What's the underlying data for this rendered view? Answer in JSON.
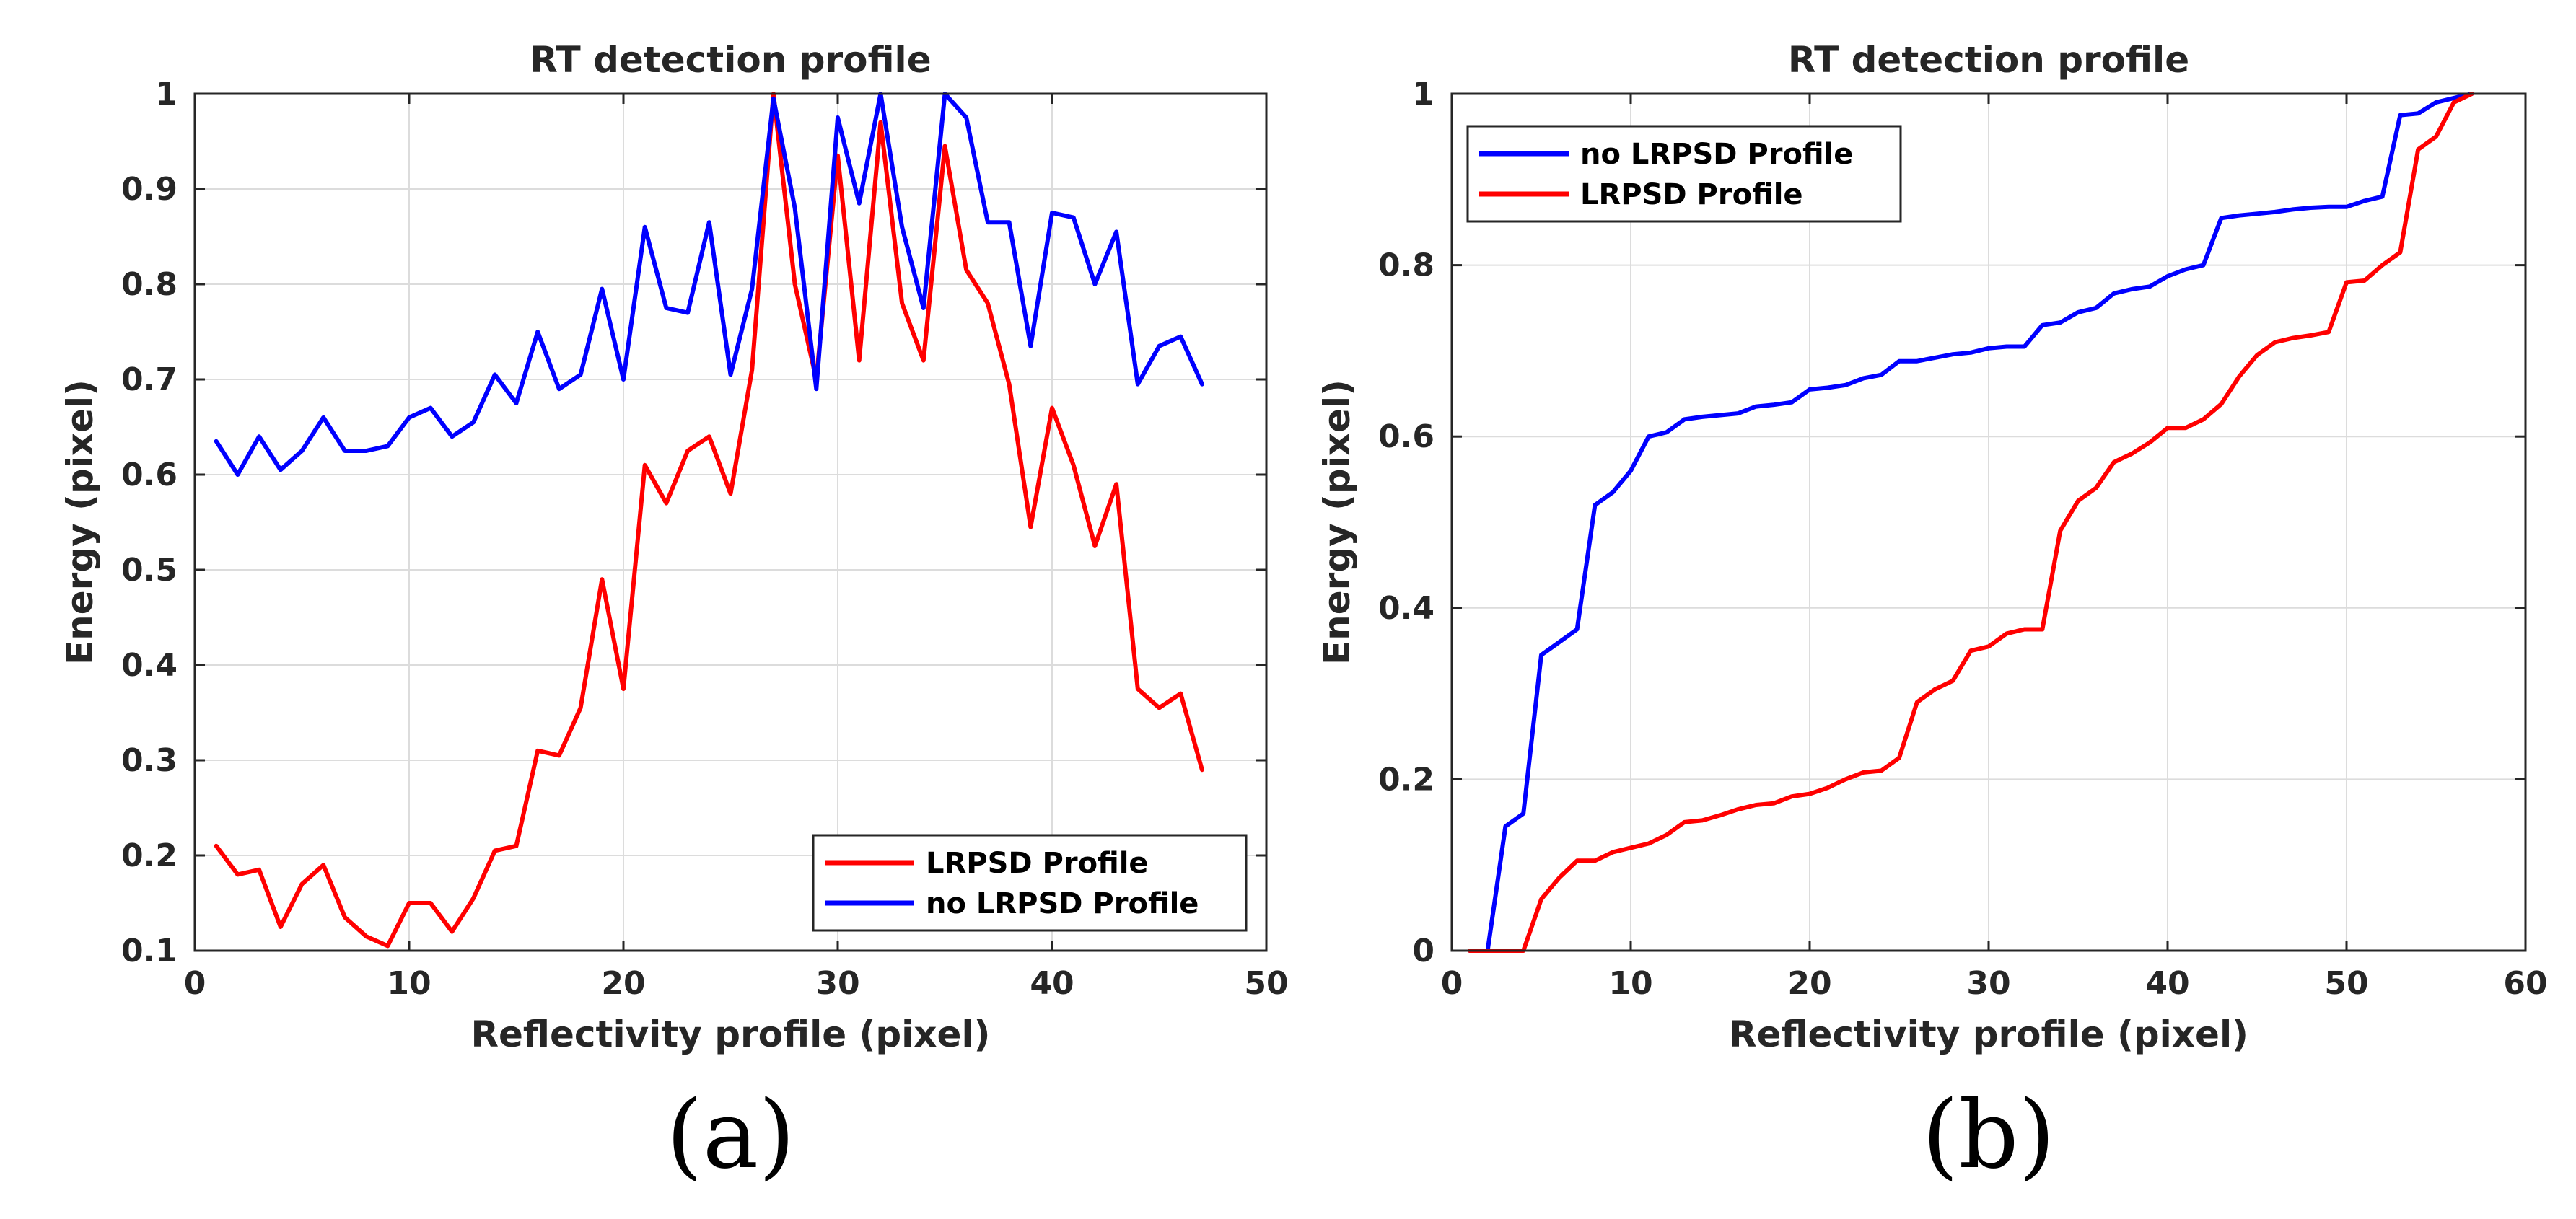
{
  "chart_data": [
    {
      "type": "line",
      "panel_label": "(a)",
      "title": "RT detection profile",
      "xlabel": "Reflectivity profile (pixel)",
      "ylabel": "Energy (pixel)",
      "xlim": [
        0,
        50
      ],
      "ylim": [
        0.1,
        1.0
      ],
      "xticks": [
        0,
        10,
        20,
        30,
        40,
        50
      ],
      "yticks": [
        0.1,
        0.2,
        0.3,
        0.4,
        0.5,
        0.6,
        0.7,
        0.8,
        0.9,
        1
      ],
      "ytick_labels": [
        "0.1",
        "0.2",
        "0.3",
        "0.4",
        "0.5",
        "0.6",
        "0.7",
        "0.8",
        "0.9",
        "1"
      ],
      "grid": true,
      "legend_position": "bottom-right",
      "series": [
        {
          "name": "LRPSD Profile",
          "color": "#ff0000",
          "x": [
            1,
            2,
            3,
            4,
            5,
            6,
            7,
            8,
            9,
            10,
            11,
            12,
            13,
            14,
            15,
            16,
            17,
            18,
            19,
            20,
            21,
            22,
            23,
            24,
            25,
            26,
            27,
            28,
            29,
            30,
            31,
            32,
            33,
            34,
            35,
            36,
            37,
            38,
            39,
            40,
            41,
            42,
            43,
            44,
            45,
            46,
            47
          ],
          "y": [
            0.21,
            0.18,
            0.185,
            0.125,
            0.17,
            0.19,
            0.135,
            0.115,
            0.105,
            0.15,
            0.15,
            0.12,
            0.155,
            0.205,
            0.21,
            0.31,
            0.305,
            0.355,
            0.49,
            0.375,
            0.61,
            0.57,
            0.625,
            0.64,
            0.58,
            0.71,
            1.0,
            0.8,
            0.7,
            0.935,
            0.72,
            0.97,
            0.78,
            0.72,
            0.945,
            0.815,
            0.78,
            0.695,
            0.545,
            0.67,
            0.61,
            0.525,
            0.59,
            0.375,
            0.355,
            0.37,
            0.29
          ]
        },
        {
          "name": "no LRPSD Profile",
          "color": "#0000ff",
          "x": [
            1,
            2,
            3,
            4,
            5,
            6,
            7,
            8,
            9,
            10,
            11,
            12,
            13,
            14,
            15,
            16,
            17,
            18,
            19,
            20,
            21,
            22,
            23,
            24,
            25,
            26,
            27,
            28,
            29,
            30,
            31,
            32,
            33,
            34,
            35,
            36,
            37,
            38,
            39,
            40,
            41,
            42,
            43,
            44,
            45,
            46,
            47
          ],
          "y": [
            0.635,
            0.6,
            0.64,
            0.605,
            0.625,
            0.66,
            0.625,
            0.625,
            0.63,
            0.66,
            0.67,
            0.64,
            0.655,
            0.705,
            0.675,
            0.75,
            0.69,
            0.705,
            0.795,
            0.7,
            0.86,
            0.775,
            0.77,
            0.865,
            0.705,
            0.795,
            0.995,
            0.88,
            0.69,
            0.975,
            0.885,
            1.0,
            0.86,
            0.775,
            1.0,
            0.975,
            0.865,
            0.865,
            0.735,
            0.875,
            0.87,
            0.8,
            0.855,
            0.695,
            0.735,
            0.745,
            0.695
          ]
        }
      ]
    },
    {
      "type": "line",
      "panel_label": "(b)",
      "title": "RT detection profile",
      "xlabel": "Reflectivity profile (pixel)",
      "ylabel": "Energy (pixel)",
      "xlim": [
        0,
        60
      ],
      "ylim": [
        0,
        1
      ],
      "xticks": [
        0,
        10,
        20,
        30,
        40,
        50,
        60
      ],
      "yticks": [
        0,
        0.2,
        0.4,
        0.6,
        0.8,
        1
      ],
      "ytick_labels": [
        "0",
        "0.2",
        "0.4",
        "0.6",
        "0.8",
        "1"
      ],
      "grid": true,
      "legend_position": "top-left",
      "series": [
        {
          "name": "no LRPSD Profile",
          "color": "#0000ff",
          "x": [
            1,
            2,
            3,
            4,
            5,
            6,
            7,
            8,
            9,
            10,
            11,
            12,
            13,
            14,
            15,
            16,
            17,
            18,
            19,
            20,
            21,
            22,
            23,
            24,
            25,
            26,
            27,
            28,
            29,
            30,
            31,
            32,
            33,
            34,
            35,
            36,
            37,
            38,
            39,
            40,
            41,
            42,
            43,
            44,
            45,
            46,
            47,
            48,
            49,
            50,
            51,
            52,
            53,
            54,
            55,
            56,
            57
          ],
          "y": [
            0,
            0,
            0.145,
            0.16,
            0.345,
            0.36,
            0.375,
            0.52,
            0.535,
            0.56,
            0.6,
            0.605,
            0.62,
            0.623,
            0.625,
            0.627,
            0.635,
            0.637,
            0.64,
            0.655,
            0.657,
            0.66,
            0.668,
            0.672,
            0.688,
            0.688,
            0.692,
            0.696,
            0.698,
            0.703,
            0.705,
            0.705,
            0.73,
            0.733,
            0.745,
            0.75,
            0.767,
            0.772,
            0.775,
            0.787,
            0.795,
            0.8,
            0.855,
            0.858,
            0.86,
            0.862,
            0.865,
            0.867,
            0.868,
            0.868,
            0.875,
            0.88,
            0.975,
            0.977,
            0.99,
            0.995,
            1.0
          ]
        },
        {
          "name": "LRPSD Profile",
          "color": "#ff0000",
          "x": [
            1,
            2,
            3,
            4,
            5,
            6,
            7,
            8,
            9,
            10,
            11,
            12,
            13,
            14,
            15,
            16,
            17,
            18,
            19,
            20,
            21,
            22,
            23,
            24,
            25,
            26,
            27,
            28,
            29,
            30,
            31,
            32,
            33,
            34,
            35,
            36,
            37,
            38,
            39,
            40,
            41,
            42,
            43,
            44,
            45,
            46,
            47,
            48,
            49,
            50,
            51,
            52,
            53,
            54,
            55,
            56,
            57
          ],
          "y": [
            0,
            0,
            0,
            0,
            0.06,
            0.085,
            0.105,
            0.105,
            0.115,
            0.12,
            0.125,
            0.135,
            0.15,
            0.152,
            0.158,
            0.165,
            0.17,
            0.172,
            0.18,
            0.183,
            0.19,
            0.2,
            0.208,
            0.21,
            0.225,
            0.29,
            0.305,
            0.315,
            0.35,
            0.355,
            0.37,
            0.375,
            0.375,
            0.49,
            0.525,
            0.54,
            0.57,
            0.58,
            0.593,
            0.61,
            0.61,
            0.62,
            0.638,
            0.67,
            0.695,
            0.71,
            0.715,
            0.718,
            0.722,
            0.78,
            0.782,
            0.8,
            0.815,
            0.935,
            0.95,
            0.99,
            1.0
          ]
        }
      ]
    }
  ]
}
